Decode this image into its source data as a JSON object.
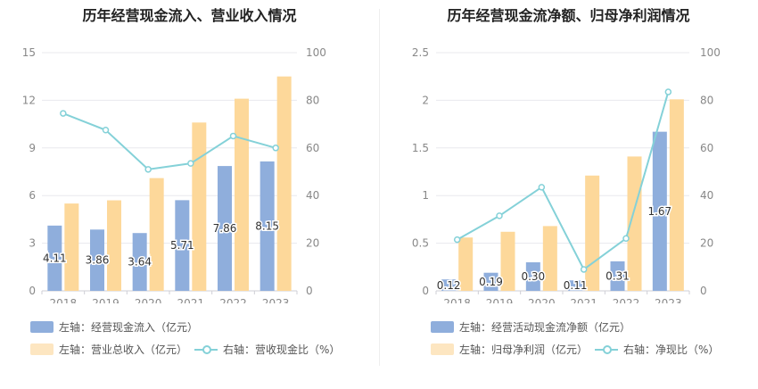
{
  "colors": {
    "blue": "#8faedc",
    "orange": "#fdd89a",
    "line": "#84d1d8",
    "grid": "#e8e8ee",
    "tick": "#888888"
  },
  "chart_data": [
    {
      "type": "bar",
      "title": "历年经营现金流入、营业收入情况",
      "categories": [
        "2018",
        "2019",
        "2020",
        "2021",
        "2022",
        "2023"
      ],
      "left_ticks": [
        "0",
        "3",
        "6",
        "9",
        "12",
        "15"
      ],
      "right_ticks": [
        "0",
        "20",
        "40",
        "60",
        "80",
        "100"
      ],
      "ylim_left": [
        0,
        15
      ],
      "ylim_right": [
        0,
        100
      ],
      "series": [
        {
          "name": "左轴：经营现金流入（亿元）",
          "axis": "left",
          "kind": "bar",
          "color": "#8faedc",
          "values": [
            4.11,
            3.86,
            3.64,
            5.71,
            7.86,
            8.15
          ],
          "labels": [
            "4.11",
            "3.86",
            "3.64",
            "5.71",
            "7.86",
            "8.15"
          ]
        },
        {
          "name": "左轴：营业总收入（亿元）",
          "axis": "left",
          "kind": "bar",
          "color": "#fdd89a",
          "values": [
            5.5,
            5.7,
            7.1,
            10.6,
            12.1,
            13.5
          ]
        },
        {
          "name": "右轴：营收现金比（%）",
          "axis": "right",
          "kind": "line",
          "color": "#84d1d8",
          "values": [
            74.5,
            67.5,
            51.0,
            53.5,
            65.0,
            60.0
          ]
        }
      ]
    },
    {
      "type": "bar",
      "title": "历年经营现金流净额、归母净利润情况",
      "categories": [
        "2018",
        "2019",
        "2020",
        "2021",
        "2022",
        "2023"
      ],
      "left_ticks": [
        "0",
        "0.5",
        "1",
        "1.5",
        "2",
        "2.5"
      ],
      "right_ticks": [
        "0",
        "20",
        "40",
        "60",
        "80",
        "100"
      ],
      "ylim_left": [
        0,
        2.5
      ],
      "ylim_right": [
        0,
        100
      ],
      "series": [
        {
          "name": "左轴：经营活动现金流净额（亿元）",
          "axis": "left",
          "kind": "bar",
          "color": "#8faedc",
          "values": [
            0.12,
            0.19,
            0.3,
            0.11,
            0.31,
            1.67
          ],
          "labels": [
            "0.12",
            "0.19",
            "0.30",
            "0.11",
            "0.31",
            "1.67"
          ]
        },
        {
          "name": "左轴：归母净利润（亿元）",
          "axis": "left",
          "kind": "bar",
          "color": "#fdd89a",
          "values": [
            0.56,
            0.62,
            0.68,
            1.21,
            1.41,
            2.01
          ]
        },
        {
          "name": "右轴：净现比（%）",
          "axis": "right",
          "kind": "line",
          "color": "#84d1d8",
          "values": [
            21.5,
            31.5,
            43.5,
            9.0,
            22.0,
            83.5
          ]
        }
      ]
    }
  ]
}
